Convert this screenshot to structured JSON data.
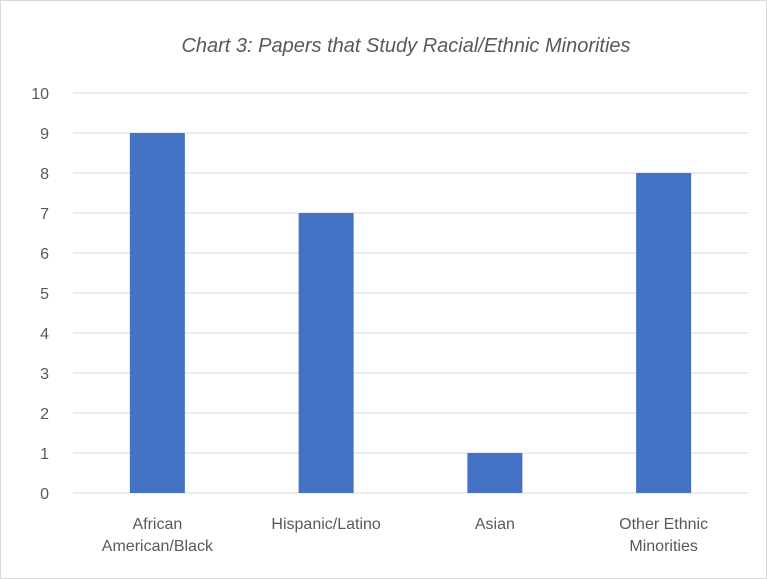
{
  "chart_data": {
    "type": "bar",
    "title": "Chart 3: Papers that Study Racial/Ethnic Minorities",
    "categories": [
      [
        "African",
        "American/Black"
      ],
      [
        "Hispanic/Latino"
      ],
      [
        "Asian"
      ],
      [
        "Other Ethnic",
        "Minorities"
      ]
    ],
    "values": [
      9,
      7,
      1,
      8
    ],
    "ylim": [
      0,
      10
    ],
    "yticks": [
      0,
      1,
      2,
      3,
      4,
      5,
      6,
      7,
      8,
      9,
      10
    ],
    "grid": true,
    "legend": "none",
    "colors": {
      "bar": "#4472C4",
      "grid": "#d9d9d9",
      "text": "#595959"
    }
  }
}
